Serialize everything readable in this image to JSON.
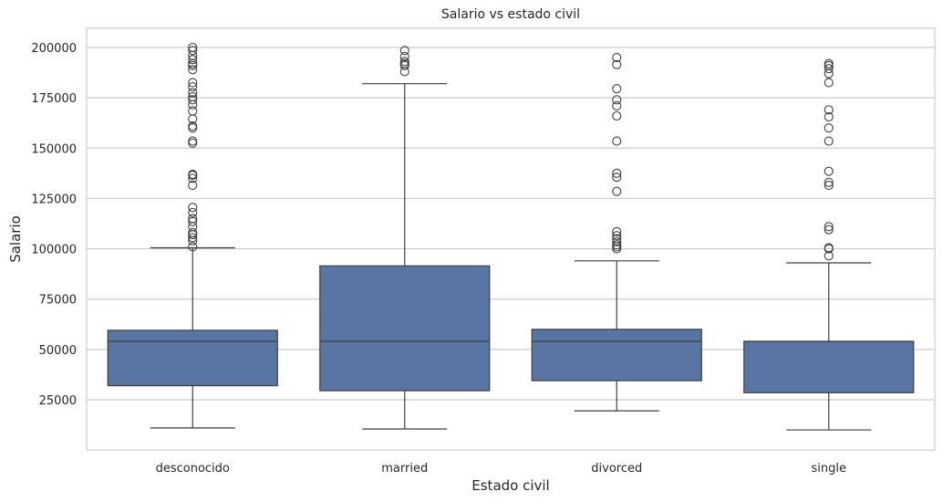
{
  "chart_data": {
    "type": "box",
    "title": "Salario vs estado civil",
    "xlabel": "Estado civil",
    "ylabel": "Salario",
    "categories": [
      "desconocido",
      "married",
      "divorced",
      "single"
    ],
    "ylim": [
      0,
      210000
    ],
    "yticks": [
      25000,
      50000,
      75000,
      100000,
      125000,
      150000,
      175000,
      200000
    ],
    "ytick_labels": [
      "25000",
      "50000",
      "75000",
      "100000",
      "125000",
      "150000",
      "175000",
      "200000"
    ],
    "grid": "horizontal",
    "box_color": "#5875a4",
    "line_color": "#3d3d3d",
    "boxes": [
      {
        "category": "desconocido",
        "whisker_low": 11000,
        "q1": 32000,
        "median": 54000,
        "q3": 59500,
        "whisker_high": 100500,
        "outliers": [
          101000,
          104000,
          105500,
          107000,
          108000,
          111000,
          113500,
          115000,
          118000,
          120500,
          131500,
          135000,
          136500,
          137000,
          152500,
          153500,
          160000,
          161000,
          164500,
          168500,
          171500,
          174000,
          175500,
          177500,
          180500,
          182500,
          189000,
          191000,
          192000,
          194000,
          196000,
          198500,
          200000
        ]
      },
      {
        "category": "married",
        "whisker_low": 10500,
        "q1": 29500,
        "median": 54000,
        "q3": 91500,
        "whisker_high": 182000,
        "outliers": [
          188000,
          191000,
          192000,
          193000,
          195500,
          198500
        ]
      },
      {
        "category": "divorced",
        "whisker_low": 19500,
        "q1": 34500,
        "median": 54000,
        "q3": 60000,
        "whisker_high": 94000,
        "outliers": [
          100000,
          101000,
          102000,
          103500,
          105000,
          106500,
          108500,
          128500,
          135500,
          137500,
          153500,
          166000,
          171000,
          174000,
          179500,
          191500,
          195000
        ]
      },
      {
        "category": "single",
        "whisker_low": 10000,
        "q1": 28500,
        "median": 54000,
        "q3": 54000,
        "whisker_high": 93000,
        "outliers": [
          96500,
          100000,
          100500,
          109500,
          111000,
          131500,
          133000,
          138500,
          153500,
          160000,
          165500,
          169000,
          182500,
          187000,
          189500,
          191000,
          192000
        ]
      }
    ]
  }
}
